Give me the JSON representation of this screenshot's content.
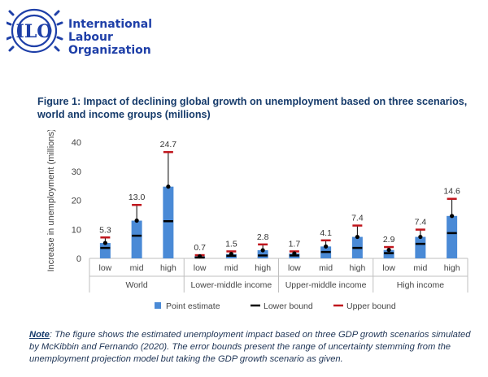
{
  "header": {
    "org_name_lines": [
      "International",
      "Labour",
      "Organization"
    ],
    "logo_letters": "ILO"
  },
  "figure": {
    "title": "Figure 1: Impact of declining global growth on unemployment based on three scenarios, world and income groups (millions)",
    "note_label": "Note",
    "note_text": ": The figure shows the estimated unemployment impact based on three GDP growth scenarios simulated by McKibbin and Fernando (2020). The error bounds present the range of uncertainty stemming from the unemployment projection model but taking the GDP growth scenario as given."
  },
  "colors": {
    "bar": "#4a8ad6",
    "lower": "#000000",
    "upper": "#c0161d",
    "logo": "#1e3fa8",
    "title": "#163b6b"
  },
  "chart_data": {
    "type": "bar",
    "ylabel": "Increase in unemployment (millions)",
    "ylim": [
      0,
      40
    ],
    "yticks": [
      0,
      10,
      20,
      30,
      40
    ],
    "groups": [
      {
        "name": "World",
        "categories": [
          "low",
          "mid",
          "high"
        ]
      },
      {
        "name": "Lower-middle income",
        "categories": [
          "low",
          "mid",
          "high"
        ]
      },
      {
        "name": "Upper-middle income",
        "categories": [
          "low",
          "mid",
          "high"
        ]
      },
      {
        "name": "High income",
        "categories": [
          "low",
          "mid",
          "high"
        ]
      }
    ],
    "series": [
      {
        "name": "Point estimate",
        "values": [
          5.3,
          13.0,
          24.7,
          0.7,
          1.5,
          2.8,
          1.7,
          4.1,
          7.4,
          2.9,
          7.4,
          14.6
        ]
      },
      {
        "name": "Lower bound",
        "values": [
          3.6,
          7.8,
          12.8,
          0.3,
          0.9,
          1.0,
          1.0,
          2.2,
          3.6,
          1.8,
          5.0,
          8.7
        ]
      },
      {
        "name": "Upper bound",
        "values": [
          7.2,
          18.4,
          36.6,
          1.1,
          2.4,
          4.8,
          2.4,
          6.2,
          11.3,
          3.9,
          9.9,
          20.5
        ]
      }
    ],
    "data_labels": [
      "5.3",
      "13.0",
      "24.7",
      "0.7",
      "1.5",
      "2.8",
      "1.7",
      "4.1",
      "7.4",
      "2.9",
      "7.4",
      "14.6"
    ],
    "legend_position": "bottom"
  }
}
